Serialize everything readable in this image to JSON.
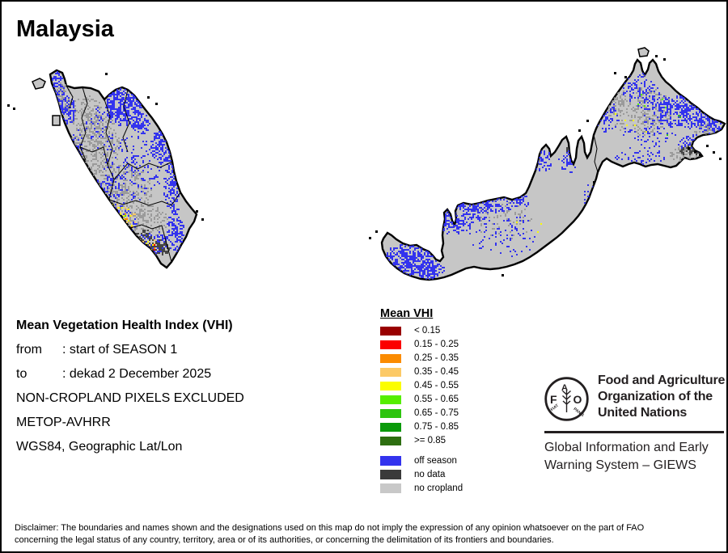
{
  "title": "Malaysia",
  "info_block": {
    "heading": "Mean Vegetation Health Index (VHI)",
    "rows": [
      {
        "label": "from",
        "value": ": start of SEASON 1"
      },
      {
        "label": "to",
        "value": ": dekad 2 December 2025"
      }
    ],
    "lines": [
      "NON-CROPLAND PIXELS EXCLUDED",
      "METOP-AVHRR",
      "WGS84, Geographic Lat/Lon"
    ]
  },
  "legend": {
    "title": "Mean VHI",
    "classes": [
      {
        "label": "< 0.15",
        "color": "#990000"
      },
      {
        "label": "0.15 - 0.25",
        "color": "#fb0000"
      },
      {
        "label": "0.25 - 0.35",
        "color": "#fb8b00"
      },
      {
        "label": "0.35 - 0.45",
        "color": "#fcc966"
      },
      {
        "label": "0.45 - 0.55",
        "color": "#fbfd00"
      },
      {
        "label": "0.55 - 0.65",
        "color": "#55ee00"
      },
      {
        "label": "0.65 - 0.75",
        "color": "#2dc40e"
      },
      {
        "label": "0.75 - 0.85",
        "color": "#0a9a0a"
      },
      {
        "label": ">= 0.85",
        "color": "#2d6e10"
      }
    ],
    "extra": [
      {
        "label": "off season",
        "color": "#3333ee"
      },
      {
        "label": "no data",
        "color": "#3a3a3a"
      },
      {
        "label": "no cropland",
        "color": "#c8c8c8"
      }
    ]
  },
  "map": {
    "base_color": "#c6c6c6",
    "coast_color": "#000000",
    "speckle_color": "#9b9b9b",
    "dark_color": "#454545"
  },
  "fao": {
    "org_lines": [
      "Food and Agriculture",
      "Organization of the",
      "United Nations"
    ],
    "giews_lines": [
      "Global Information and Early",
      "Warning System – GIEWS"
    ],
    "logo_letters": [
      "F",
      "A",
      "O"
    ],
    "motto": [
      "FIAT",
      "PANIS"
    ]
  },
  "disclaimer": [
    "Disclaimer: The boundaries and names shown and the designations used on this map do not imply the expression of any opinion whatsoever on the part of FAO",
    "concerning the legal status of any country, territory, area or of its authorities, or concerning the delimitation of its frontiers and boundaries."
  ]
}
